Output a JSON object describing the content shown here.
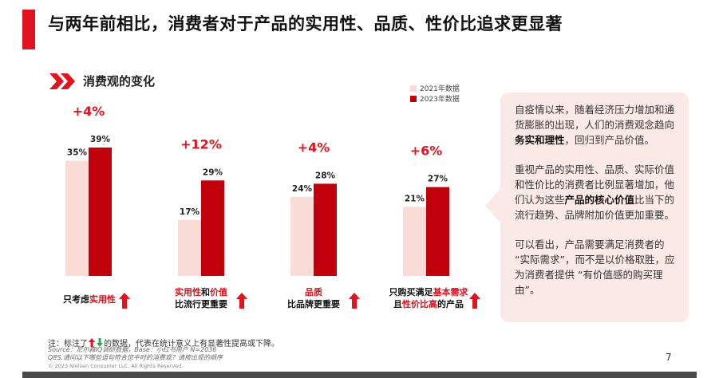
{
  "page": {
    "title": "与两年前相比，消费者对于产品的实用性、品质、性价比追求更显著",
    "section_title": "消费观的变化",
    "page_number": "7"
  },
  "colors": {
    "accent": "#e0141e",
    "series_2021": "#f8dcd5",
    "series_2023": "#c0000b",
    "delta": "#e0141e",
    "panel_bg": "#fbe9e8"
  },
  "chart_data": {
    "type": "bar",
    "categories": [
      {
        "parts": [
          {
            "text": "只考虑",
            "hl": false
          },
          {
            "text": "实用性",
            "hl": true
          }
        ]
      },
      {
        "parts": [
          {
            "text": "实用性",
            "hl": true
          },
          {
            "text": "和",
            "hl": false
          },
          {
            "text": "价值",
            "hl": true
          }
        ],
        "line2": "比流行更重要"
      },
      {
        "parts": [
          {
            "text": "品质",
            "hl": true
          }
        ],
        "line2": "比品牌更重要"
      },
      {
        "parts": [
          {
            "text": "只购买满足",
            "hl": false
          },
          {
            "text": "基本需求",
            "hl": true
          }
        ],
        "line2_parts": [
          {
            "text": "且",
            "hl": false
          },
          {
            "text": "性价比高",
            "hl": true
          },
          {
            "text": "的产品",
            "hl": false
          }
        ]
      }
    ],
    "series": [
      {
        "name": "2021年数据",
        "values": [
          35,
          17,
          24,
          21
        ]
      },
      {
        "name": "2023年数据",
        "values": [
          39,
          29,
          28,
          27
        ]
      }
    ],
    "value_labels": [
      [
        "35%",
        "39%"
      ],
      [
        "17%",
        "29%"
      ],
      [
        "24%",
        "28%"
      ],
      [
        "21%",
        "27%"
      ]
    ],
    "deltas": [
      "+4%",
      "+12%",
      "+4%",
      "+6%"
    ],
    "legend_position": "top-right",
    "grid": false,
    "ylim": [
      0,
      39
    ]
  },
  "side_panel": {
    "p1_a": "自疫情以来，随着经济压力增加和通货膨胀的出现，人们的消费观念趋向",
    "p1_b": "务实和理性",
    "p1_c": "，回归到产品价值。",
    "p2_a": "重视产品的实用性、品质、实际价值和性价比的消费者比例显著增加，他们认为这些",
    "p2_b": "产品的核心价值",
    "p2_c": "比当下的流行趋势、品牌附加价值更加重要。",
    "p3": "可以看出，产品需要满足消费者的 “实际需求”，而不是以价格取胜，应为消费者提供 “有价值感的购买理由”。"
  },
  "footnote": {
    "prefix": "注：标注了",
    "suffix": "的数据，代表在统计意义上有显著性提高或下降。",
    "source_line1": "Source：尼尔森IQ调研数据，Base：小红书用户 N=2036",
    "source_line2": "Q8S.请问以下哪些语句符合您平时的消费观？请按出现的顺序",
    "copyright": "© 2023 Nielsen Consumer LLC. All Rights Reserved."
  }
}
